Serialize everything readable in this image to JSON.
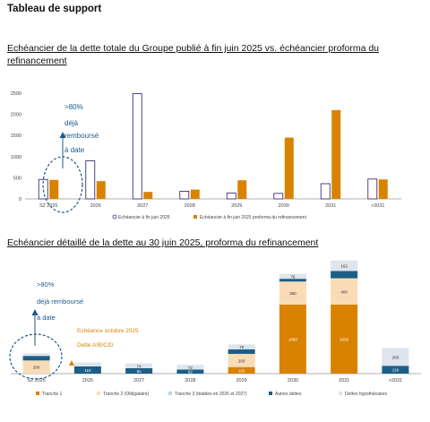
{
  "page": {
    "title": "Tableau de support"
  },
  "colors": {
    "orange": "#d98200",
    "outline": "#3c2f7a",
    "tranche1": "#d98200",
    "tranche2": "#f9dcb6",
    "tranche3": "#b8d3ec",
    "autres": "#1c5e86",
    "hypo": "#dfe5ec",
    "annot_blue": "#1f5a8c"
  },
  "chart_data": [
    {
      "type": "bar",
      "title": "Echéancier de la dette totale du Groupe publié à fin juin 2025 vs. échéancier proforma du refinancement",
      "categories": [
        "S2 2025",
        "2026",
        "2027",
        "2028",
        "2029",
        "2030",
        "2031",
        ">2031"
      ],
      "series": [
        {
          "name": "Echéancier à fin juin 2025",
          "values": [
            460,
            900,
            2490,
            180,
            140,
            130,
            360,
            470
          ]
        },
        {
          "name": "Echéancier à fin juin 2025 proforma du refinancement",
          "values": [
            450,
            420,
            165,
            220,
            440,
            1450,
            2100,
            460
          ]
        }
      ],
      "yticks": [
        0,
        500,
        1000,
        1500,
        2000,
        2500
      ],
      "ylim": [
        0,
        2500
      ],
      "legend_position": "bottom",
      "annotations": [
        ">80%",
        "déjà",
        "remboursé",
        "à date"
      ]
    },
    {
      "type": "bar",
      "stacked": true,
      "title": "Echéancier détaillé de la dette au 30 juin 2025, proforma du refinancement",
      "categories": [
        "S2 2025",
        "2026",
        "2027",
        "2028",
        "2029",
        "2030",
        "2031",
        ">2031"
      ],
      "series": [
        {
          "name": "Tranche 1",
          "values": [
            0,
            0,
            0,
            0,
            100,
            1050,
            1050,
            0
          ],
          "labels": [
            "",
            "",
            "",
            "",
            "100",
            "1050",
            "1050",
            ""
          ]
        },
        {
          "name": "Tranche 2 (Obligataire)",
          "values": [
            200,
            0,
            0,
            0,
            200,
            350,
            400,
            0
          ],
          "labels": [
            "200",
            "",
            "",
            "",
            "200",
            "350",
            "400",
            ""
          ]
        },
        {
          "name": "Tranche 3 (tirables en 2026 et 2027)",
          "values": [
            0,
            0,
            0,
            0,
            0,
            0,
            0,
            0
          ],
          "labels": [
            "",
            "",
            "",
            "",
            "",
            "",
            "",
            ""
          ]
        },
        {
          "name": "Autres dettes",
          "values": [
            70,
            110,
            82,
            62,
            70,
            42,
            110,
            119
          ],
          "labels": [
            "",
            "110",
            "82",
            "62",
            "",
            "",
            "",
            "119"
          ]
        },
        {
          "name": "Dettes hypothécaires",
          "values": [
            40,
            60,
            74,
            72,
            75,
            76,
            162,
            269
          ],
          "labels": [
            "",
            "",
            "74",
            "72",
            "75",
            "76",
            "162",
            "269"
          ]
        }
      ],
      "legend_position": "bottom",
      "annotations": [
        ">80%",
        "déjà remboursé",
        "à date",
        "Echéance octobre 2025",
        "Dette A/B/C/D"
      ]
    }
  ]
}
